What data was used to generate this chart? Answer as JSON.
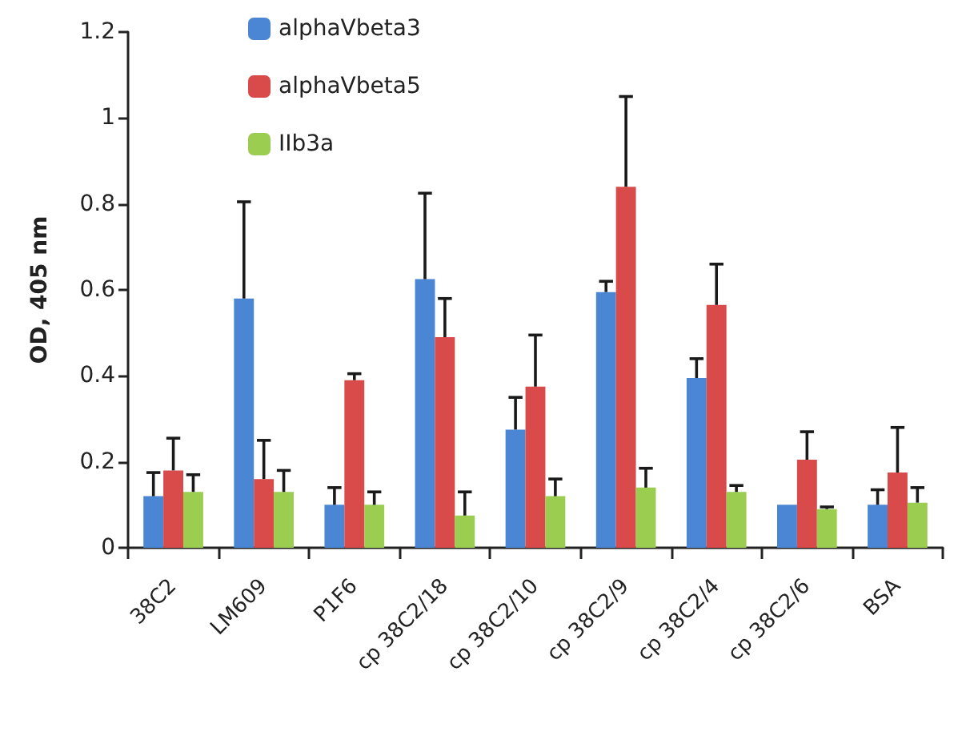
{
  "chart_data": {
    "type": "bar",
    "ylabel": "OD, 405 nm",
    "categories": [
      "38C2",
      "LM609",
      "P1F6",
      "cp 38C2/18",
      "cp 38C2/10",
      "cp 38C2/9",
      "cp 38C2/4",
      "cp 38C2/6",
      "BSA"
    ],
    "series": [
      {
        "name": "alphaVbeta3",
        "color": "#4a86d4",
        "values": [
          0.12,
          0.58,
          0.1,
          0.625,
          0.275,
          0.595,
          0.395,
          0.1,
          0.1
        ],
        "errors": [
          [
            0.12,
            0.175
          ],
          [
            0.58,
            0.805
          ],
          [
            0.1,
            0.14
          ],
          [
            0.625,
            0.825
          ],
          [
            0.275,
            0.35
          ],
          [
            0.595,
            0.62
          ],
          [
            0.395,
            0.44
          ],
          [
            0.1,
            0.1
          ],
          [
            0.1,
            0.135
          ]
        ]
      },
      {
        "name": "alphaVbeta5",
        "color": "#d94a4a",
        "values": [
          0.18,
          0.16,
          0.39,
          0.49,
          0.375,
          0.84,
          0.565,
          0.205,
          0.175
        ],
        "errors": [
          [
            0.18,
            0.255
          ],
          [
            0.16,
            0.25
          ],
          [
            0.39,
            0.405
          ],
          [
            0.49,
            0.58
          ],
          [
            0.375,
            0.495
          ],
          [
            0.84,
            1.05
          ],
          [
            0.565,
            0.66
          ],
          [
            0.205,
            0.27
          ],
          [
            0.175,
            0.28
          ]
        ]
      },
      {
        "name": "IIb3a",
        "color": "#9acd50",
        "values": [
          0.13,
          0.13,
          0.1,
          0.075,
          0.12,
          0.14,
          0.13,
          0.09,
          0.105
        ],
        "errors": [
          [
            0.13,
            0.17
          ],
          [
            0.13,
            0.18
          ],
          [
            0.1,
            0.13
          ],
          [
            0.075,
            0.13
          ],
          [
            0.12,
            0.16
          ],
          [
            0.14,
            0.185
          ],
          [
            0.13,
            0.145
          ],
          [
            0.09,
            0.095
          ],
          [
            0.105,
            0.14
          ]
        ]
      }
    ],
    "ylim": [
      0,
      1.2
    ],
    "yticks": [
      0,
      0.2,
      0.4,
      0.6,
      0.8,
      1,
      1.2
    ],
    "grid": false,
    "legend": "top left"
  }
}
